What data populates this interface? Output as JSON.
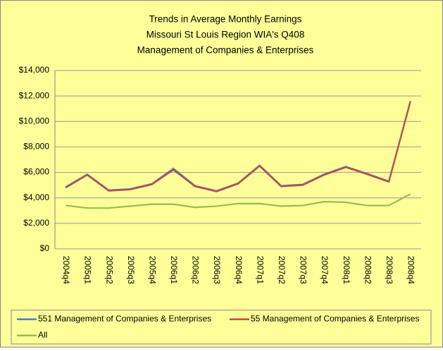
{
  "chart_data": {
    "type": "line",
    "title": [
      "Trends in Average Monthly Earnings",
      "Missouri St Louis Region WIA's Q408",
      "Management of Companies & Enterprises"
    ],
    "categories": [
      "2004q4",
      "2005q1",
      "2005q2",
      "2005q3",
      "2005q4",
      "2006q1",
      "2006q2",
      "2006q3",
      "2006q4",
      "2007q1",
      "2007q2",
      "2007q3",
      "2007q4",
      "2008q1",
      "2008q2",
      "2008q3",
      "2008q4"
    ],
    "series": [
      {
        "name": "551 Management of Companies & Enterprises",
        "color": "#4a7ebb",
        "values": [
          4850,
          5850,
          4600,
          4700,
          5100,
          6300,
          4950,
          4550,
          5150,
          6550,
          4950,
          5050,
          5850,
          6450,
          5900,
          5300,
          11600
        ]
      },
      {
        "name": "55 Management of Companies & Enterprises",
        "color": "#be4b48",
        "values": [
          4800,
          5800,
          4550,
          4650,
          5050,
          6200,
          4900,
          4500,
          5100,
          6500,
          4900,
          5000,
          5800,
          6400,
          5850,
          5250,
          11550
        ]
      },
      {
        "name": "All",
        "color": "#98b954",
        "values": [
          3400,
          3200,
          3200,
          3350,
          3500,
          3500,
          3250,
          3350,
          3550,
          3550,
          3350,
          3400,
          3700,
          3650,
          3400,
          3400,
          4300
        ]
      }
    ],
    "ylim": [
      0,
      14000
    ],
    "yticks": [
      {
        "value": 0,
        "label": "$0"
      },
      {
        "value": 2000,
        "label": "$2,000"
      },
      {
        "value": 4000,
        "label": "$4,000"
      },
      {
        "value": 6000,
        "label": "$6,000"
      },
      {
        "value": 8000,
        "label": "$8,000"
      },
      {
        "value": 10000,
        "label": "$10,000"
      },
      {
        "value": 12000,
        "label": "$12,000"
      },
      {
        "value": 14000,
        "label": "$14,000"
      }
    ],
    "grid": true,
    "legend": "bottom",
    "background": "#ffff99"
  }
}
